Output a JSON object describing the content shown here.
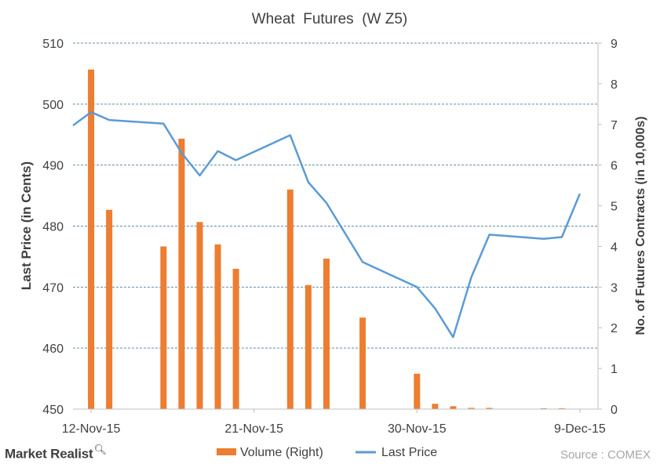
{
  "chart_data": {
    "type": "bar+line",
    "title": "Wheat  Futures  (W Z5)",
    "ylabel_left": "Last Price (in Cents)",
    "ylabel_right": "No. of Futures Contracts (in 10,000s)",
    "ylim_left": [
      450,
      510
    ],
    "ylim_right": [
      0,
      9
    ],
    "yticks_left": [
      "450",
      "460",
      "470",
      "480",
      "490",
      "500",
      "510"
    ],
    "yticks_right": [
      "0",
      "1",
      "2",
      "3",
      "4",
      "5",
      "6",
      "7",
      "8",
      "9"
    ],
    "xticks": [
      "12-Nov-15",
      "21-Nov-15",
      "30-Nov-15",
      "9-Dec-15"
    ],
    "grid": true,
    "legend_position": "bottom",
    "series": [
      {
        "name": "Volume (Right)",
        "kind": "bar",
        "axis": "right",
        "color": "#ED7D31",
        "points": [
          [
            "12-Nov-15",
            8.35
          ],
          [
            "13-Nov-15",
            4.9
          ],
          [
            "16-Nov-15",
            4.0
          ],
          [
            "17-Nov-15",
            6.65
          ],
          [
            "18-Nov-15",
            4.6
          ],
          [
            "19-Nov-15",
            4.05
          ],
          [
            "20-Nov-15",
            3.45
          ],
          [
            "23-Nov-15",
            5.4
          ],
          [
            "24-Nov-15",
            3.05
          ],
          [
            "25-Nov-15",
            3.7
          ],
          [
            "27-Nov-15",
            2.25
          ],
          [
            "30-Nov-15",
            0.87
          ],
          [
            "1-Dec-15",
            0.13
          ],
          [
            "2-Dec-15",
            0.07
          ],
          [
            "3-Dec-15",
            0.03
          ],
          [
            "4-Dec-15",
            0.03
          ],
          [
            "7-Dec-15",
            0.02
          ],
          [
            "8-Dec-15",
            0.02
          ]
        ]
      },
      {
        "name": "Last Price",
        "kind": "line",
        "axis": "left",
        "color": "#5B9BD5",
        "points": [
          [
            "11-Nov-15",
            496.5
          ],
          [
            "12-Nov-15",
            498.7
          ],
          [
            "13-Nov-15",
            497.4
          ],
          [
            "16-Nov-15",
            496.8
          ],
          [
            "17-Nov-15",
            492.0
          ],
          [
            "18-Nov-15",
            488.3
          ],
          [
            "19-Nov-15",
            492.3
          ],
          [
            "20-Nov-15",
            490.8
          ],
          [
            "23-Nov-15",
            494.9
          ],
          [
            "24-Nov-15",
            487.2
          ],
          [
            "25-Nov-15",
            483.8
          ],
          [
            "27-Nov-15",
            474.1
          ],
          [
            "30-Nov-15",
            470.0
          ],
          [
            "1-Dec-15",
            466.5
          ],
          [
            "2-Dec-15",
            461.8
          ],
          [
            "3-Dec-15",
            471.6
          ],
          [
            "4-Dec-15",
            478.6
          ],
          [
            "7-Dec-15",
            477.9
          ],
          [
            "8-Dec-15",
            478.2
          ],
          [
            "9-Dec-15",
            485.3
          ]
        ]
      }
    ]
  },
  "brand": {
    "name": "Market Realist",
    "icon": "magnifier-icon"
  },
  "source": "Source :  COMEX"
}
